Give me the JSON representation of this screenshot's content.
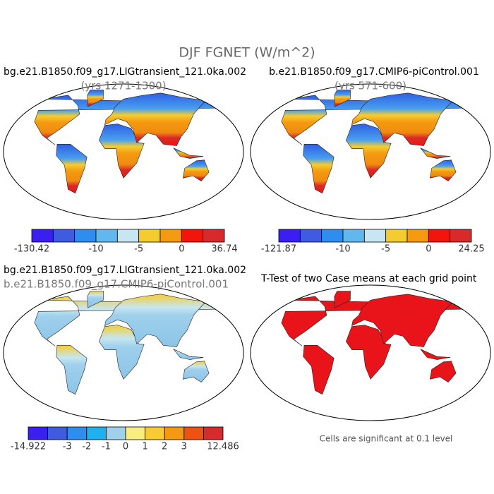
{
  "title": "DJF FGNET (W/m^2)",
  "panels": [
    {
      "title": "bg.e21.B1850.f09_g17.LIGtransient_121.0ka.002",
      "subtitle": "(yrs 1271-1300)",
      "colorbar": {
        "colors": [
          "#3a1ff0",
          "#3f5be0",
          "#2e8ef0",
          "#60b8ee",
          "#c6e6f2",
          "#f5cc30",
          "#f59a10",
          "#f2150c",
          "#d82a2a"
        ],
        "labels": [
          "-130.42",
          "-10",
          "-5",
          "0",
          "36.74"
        ]
      }
    },
    {
      "title": "b.e21.B1850.f09_g17.CMIP6-piControl.001",
      "subtitle": "(yrs 571-600)",
      "colorbar": {
        "colors": [
          "#3a1ff0",
          "#3f5be0",
          "#2e8ef0",
          "#60b8ee",
          "#c6e6f2",
          "#f5cc30",
          "#f59a10",
          "#f2150c",
          "#d82a2a"
        ],
        "labels": [
          "-121.87",
          "-10",
          "-5",
          "0",
          "24.25"
        ]
      }
    },
    {
      "title": "bg.e21.B1850.f09_g17.LIGtransient_121.0ka.002",
      "subtitle": "b.e21.B1850.f09_g17.CMIP6-piControl.001",
      "colorbar": {
        "colors": [
          "#3a1ff0",
          "#3f5be0",
          "#2e8ef0",
          "#1fb0f0",
          "#9fd0ec",
          "#f8ee80",
          "#f8cc30",
          "#f59a10",
          "#f05010",
          "#d82a2a"
        ],
        "labels": [
          "-14.922",
          "-3",
          "-2",
          "-1",
          "0",
          "1",
          "2",
          "3",
          "12.486"
        ]
      }
    },
    {
      "title": "T-Test of two Case means at each grid point",
      "note": "Cells are significant at 0.1 level"
    }
  ]
}
